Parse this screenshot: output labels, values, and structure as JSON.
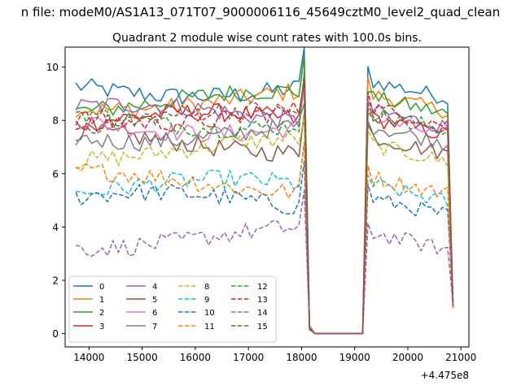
{
  "figure": {
    "suptitle": "n file: modeM0/AS1A13_071T07_9000006116_45649cztM0_level2_quad_clean",
    "offset_text": "+4.475e8"
  },
  "chart_data": {
    "type": "line",
    "title": "Quadrant 2 module wise count rates with 100.0s bins.",
    "xlabel": "",
    "ylabel": "",
    "xlim": [
      13550,
      21150
    ],
    "ylim": [
      -0.5,
      10.75
    ],
    "x_ticks": [
      14000,
      15000,
      16000,
      17000,
      18000,
      19000,
      20000,
      21000
    ],
    "y_ticks": [
      0,
      2,
      4,
      6,
      8,
      10
    ],
    "grid": false,
    "legend": {
      "placement": "lower-left",
      "columns": 4
    },
    "x_start": 13750,
    "x_step": 100,
    "gap": {
      "start": 18150,
      "end": 19150,
      "value": 0.0
    },
    "segment_a": {
      "from": 13750,
      "to": 18050
    },
    "segment_b": {
      "from": 19250,
      "to": 20850
    },
    "series": [
      {
        "name": "0",
        "color": "#1f77b4",
        "style": "solid",
        "level": 9.3
      },
      {
        "name": "1",
        "color": "#ff7f0e",
        "style": "solid",
        "level": 8.8
      },
      {
        "name": "2",
        "color": "#2ca02c",
        "style": "solid",
        "level": 8.7
      },
      {
        "name": "3",
        "color": "#d62728",
        "style": "solid",
        "level": 7.9
      },
      {
        "name": "4",
        "color": "#9467bd",
        "style": "solid",
        "level": 8.2
      },
      {
        "name": "5",
        "color": "#8c564b",
        "style": "solid",
        "level": 7.2
      },
      {
        "name": "6",
        "color": "#e377c2",
        "style": "solid",
        "level": 7.9
      },
      {
        "name": "7",
        "color": "#7f7f7f",
        "style": "solid",
        "level": 7.6
      },
      {
        "name": "8",
        "color": "#bcbd22",
        "style": "dashed",
        "level": 6.9
      },
      {
        "name": "9",
        "color": "#17becf",
        "style": "dashed",
        "level": 5.4
      },
      {
        "name": "10",
        "color": "#1f77b4",
        "style": "dashed",
        "level": 4.9
      },
      {
        "name": "11",
        "color": "#ff7f0e",
        "style": "dashed",
        "level": 5.7
      },
      {
        "name": "12",
        "color": "#2ca02c",
        "style": "dashed",
        "level": 8.1
      },
      {
        "name": "13",
        "color": "#d62728",
        "style": "dashed",
        "level": 8.3
      },
      {
        "name": "14",
        "color": "#9467bd",
        "style": "dashed",
        "level": 3.6
      },
      {
        "name": "15",
        "color": "#8c564b",
        "style": "dashed",
        "level": 8.0
      }
    ]
  }
}
